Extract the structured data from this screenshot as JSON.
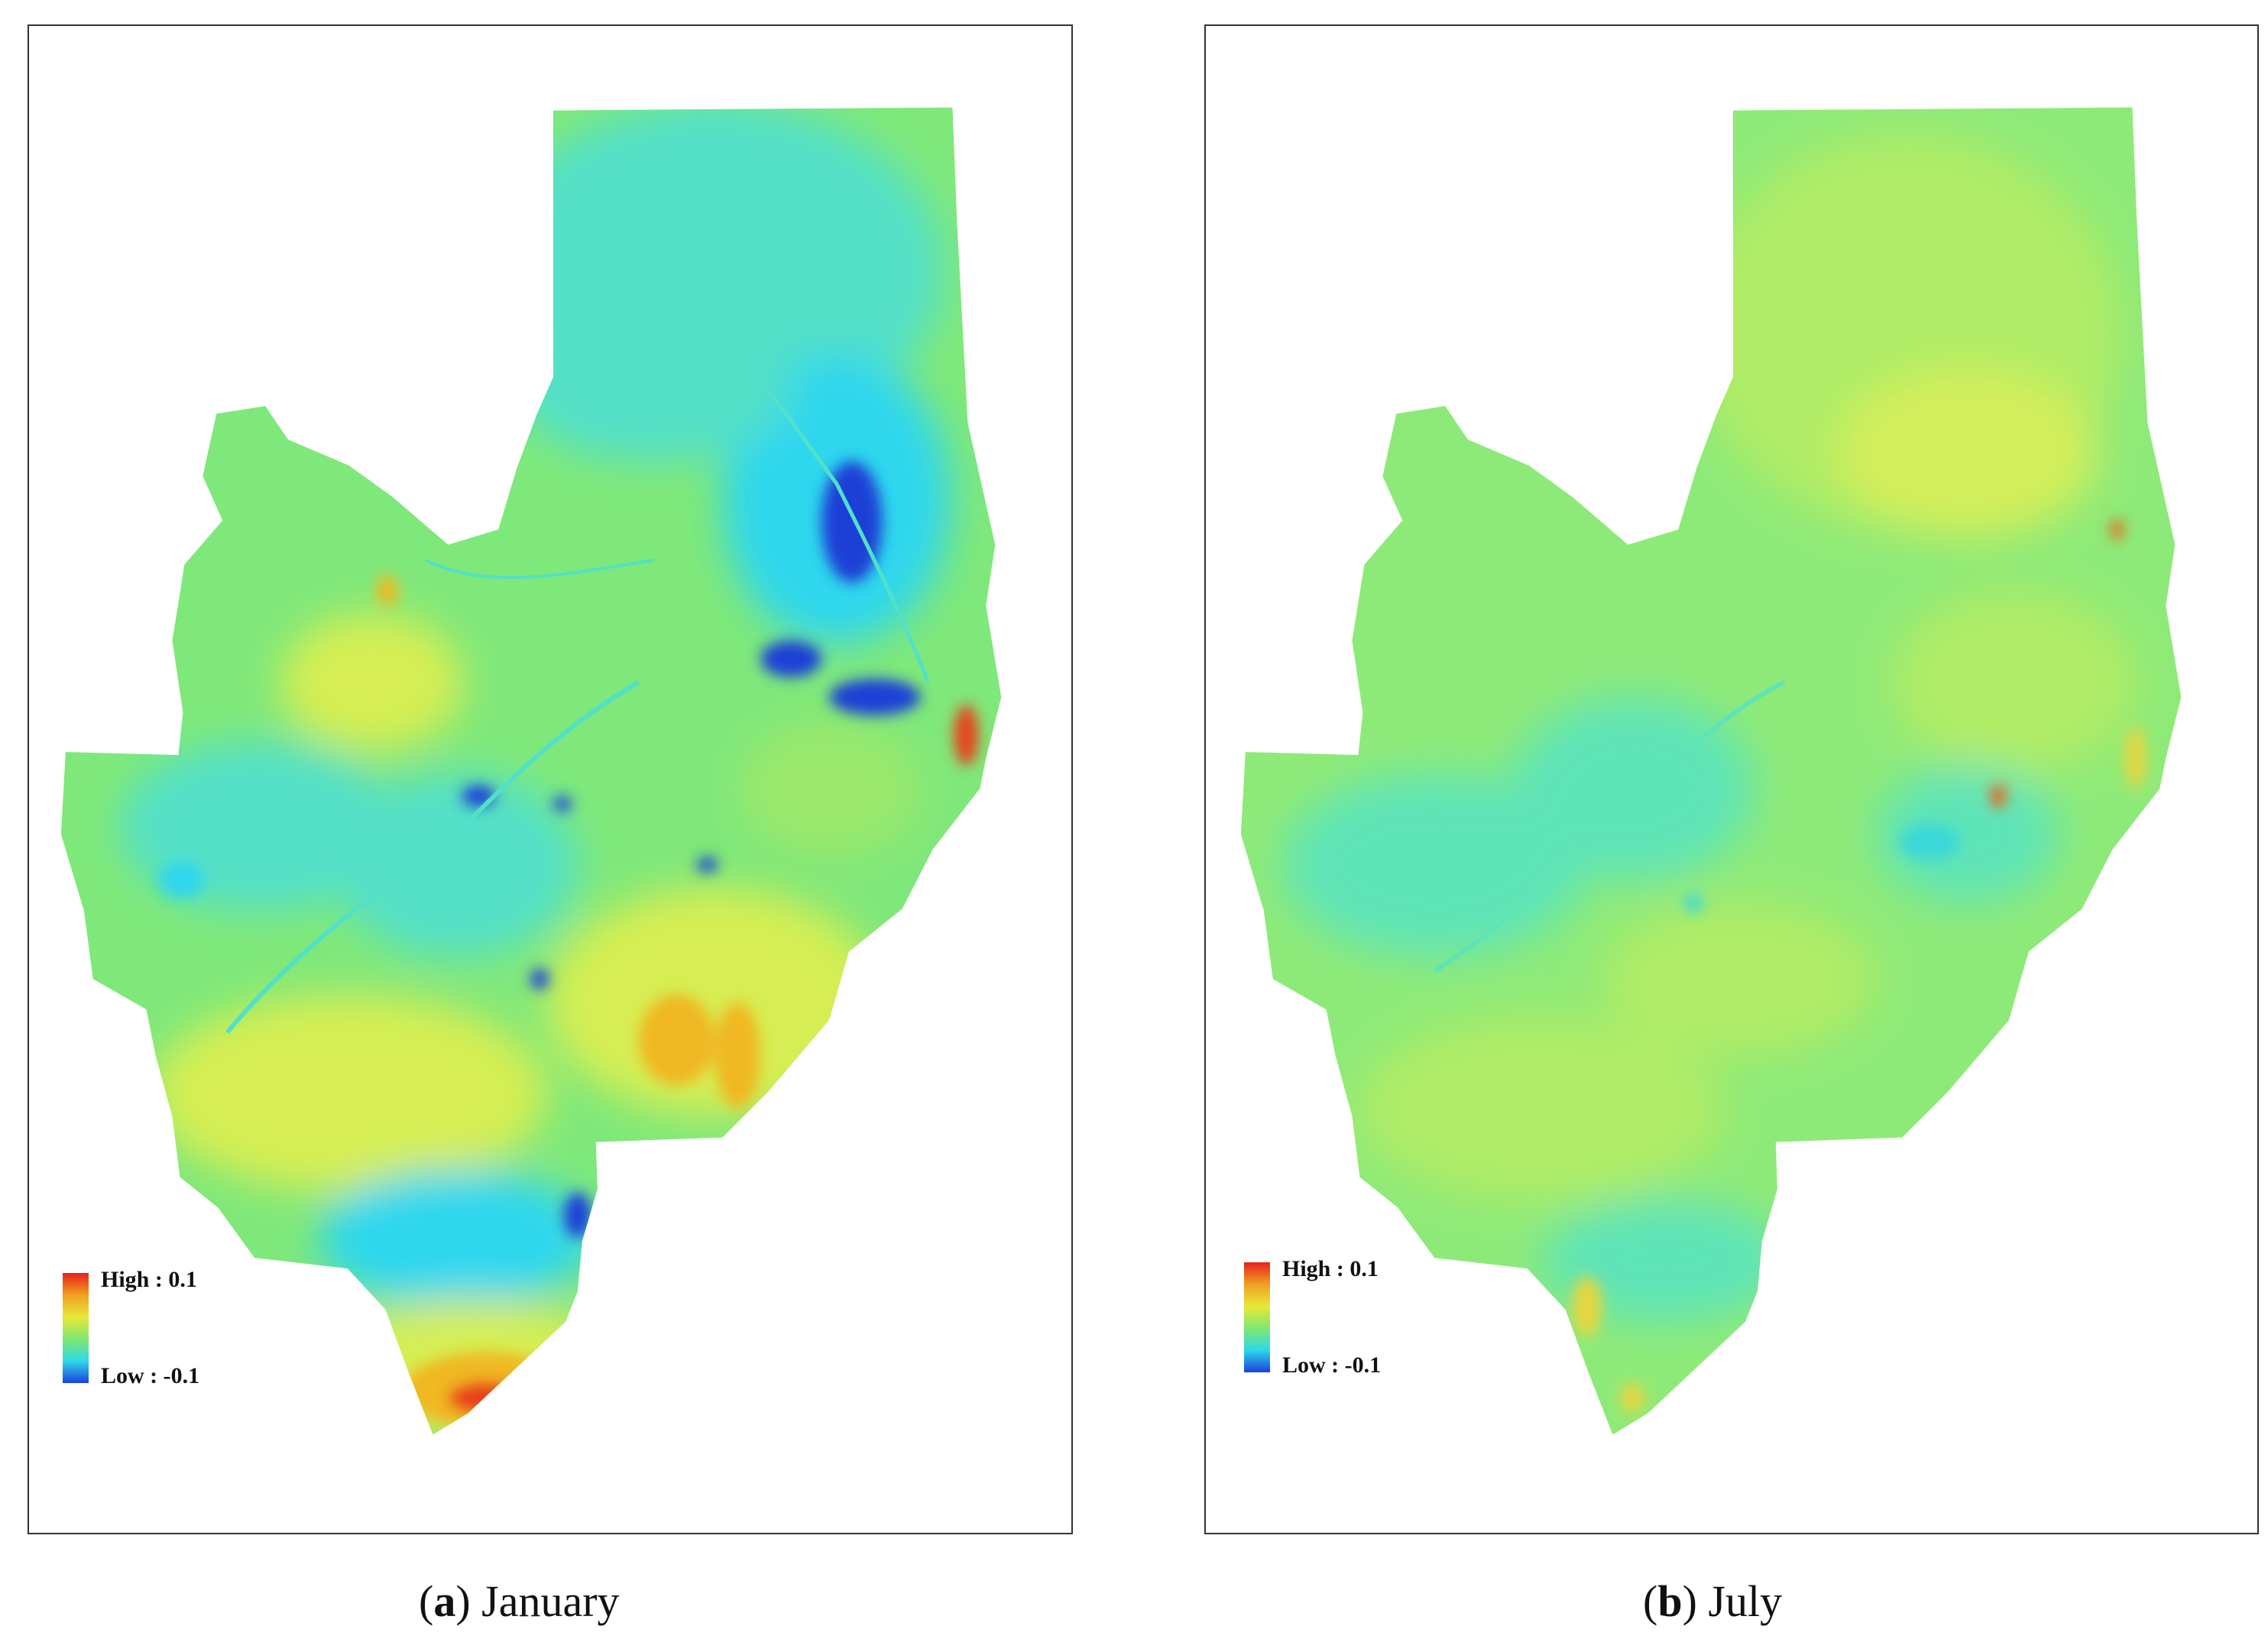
{
  "panels": [
    {
      "letter": "a",
      "month": "January",
      "legend": {
        "high_label": "High : 0.1",
        "low_label": "Low : -0.1"
      },
      "colors": {
        "base": "#7fe87a",
        "mid": "#9ae86c",
        "cool": "#52e0c8",
        "cold": "#2fd7ee",
        "deep": "#1a3fd6",
        "warm": "#d6ee52",
        "hot": "#f0b820",
        "red": "#e8401c"
      }
    },
    {
      "letter": "b",
      "month": "July",
      "legend": {
        "high_label": "High : 0.1",
        "low_label": "Low : -0.1"
      },
      "colors": {
        "base": "#8eea78",
        "mid": "#b0ec66",
        "cool": "#5fe4b8",
        "cold": "#3ad8d8",
        "deep": "#2a9ad8",
        "warm": "#d4ee5a",
        "hot": "#e6d640",
        "red": "#e8601c"
      }
    }
  ],
  "legend_colors": [
    "#e8201c",
    "#f0a020",
    "#e8e83a",
    "#7fe870",
    "#2fd8e8",
    "#1a40e0"
  ]
}
